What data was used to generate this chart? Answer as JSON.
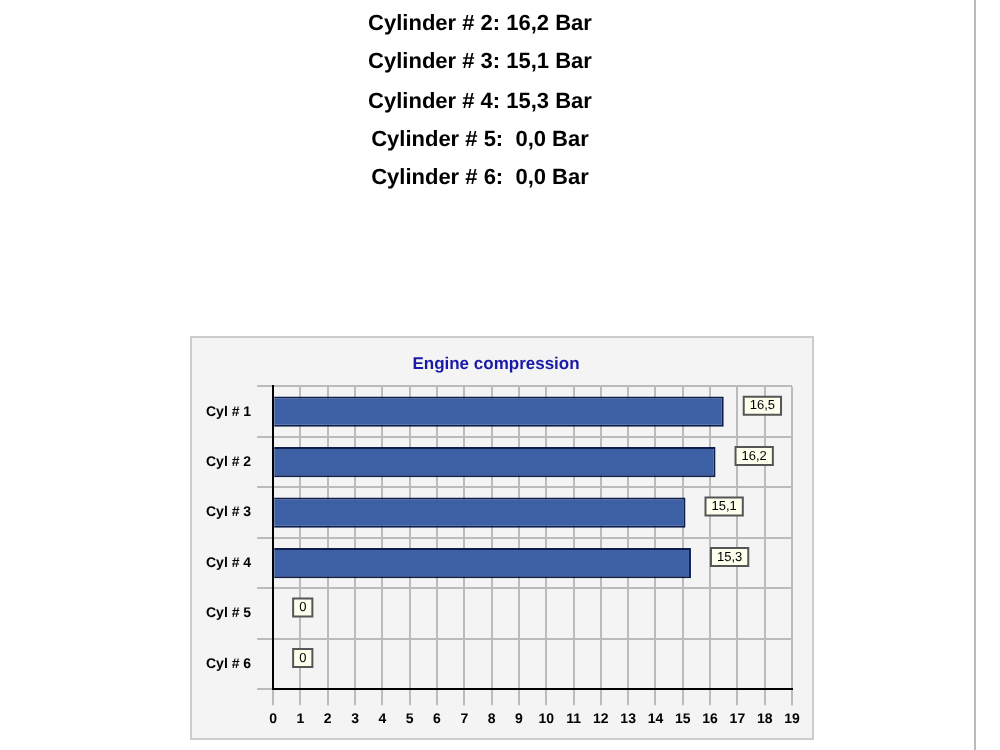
{
  "chart_data": {
    "type": "bar",
    "orientation": "horizontal",
    "title": "Engine compression",
    "categories": [
      "Cyl # 1",
      "Cyl # 2",
      "Cyl # 3",
      "Cyl # 4",
      "Cyl # 5",
      "Cyl # 6"
    ],
    "values": [
      16.5,
      16.2,
      15.1,
      15.3,
      0,
      0
    ],
    "value_labels": [
      "16,5",
      "16,2",
      "15,1",
      "15,3",
      "0",
      "0"
    ],
    "color": "#3d5fa3",
    "xlim": [
      0,
      19
    ],
    "xticks": [
      0,
      1,
      2,
      3,
      4,
      5,
      6,
      7,
      8,
      9,
      10,
      11,
      12,
      13,
      14,
      15,
      16,
      17,
      18,
      19
    ],
    "grid": true,
    "legend": false,
    "annotations": [
      "Cylinder # 2: 16,2 Bar",
      "Cylinder # 3: 15,1 Bar",
      "Cylinder # 4: 15,3 Bar",
      "Cylinder # 5:  0,0 Bar",
      "Cylinder # 6:  0,0 Bar"
    ]
  }
}
